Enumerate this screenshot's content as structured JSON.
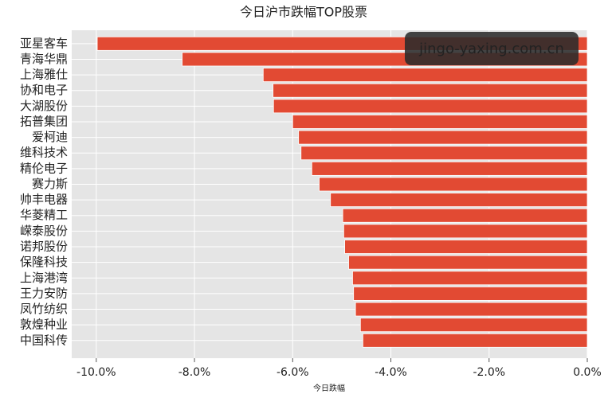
{
  "chart_data": {
    "type": "barh",
    "title": "今日沪市跌幅TOP股票",
    "x_label": "今日跌幅",
    "watermark": "jingo-yaxing.com.cn",
    "categories": [
      "亚星客车",
      "青海华鼎",
      "上海雅仕",
      "协和电子",
      "大湖股份",
      "拓普集团",
      "爱柯迪",
      "维科技术",
      "精伦电子",
      "赛力斯",
      "帅丰电器",
      "华菱精工",
      "嵘泰股份",
      "诺邦股份",
      "保隆科技",
      "上海港湾",
      "王力安防",
      "凤竹纺织",
      "敦煌种业",
      "中国科传"
    ],
    "values": [
      -9.98,
      -8.25,
      -6.6,
      -6.4,
      -6.39,
      -6.0,
      -5.88,
      -5.83,
      -5.61,
      -5.46,
      -5.23,
      -4.98,
      -4.96,
      -4.94,
      -4.86,
      -4.78,
      -4.76,
      -4.72,
      -4.62,
      -4.57
    ],
    "color": "#e24a33",
    "xlim": [
      -10.5,
      0
    ],
    "xticks": [
      {
        "value": -10,
        "label": "-10.0%"
      },
      {
        "value": -8,
        "label": "-8.0%"
      },
      {
        "value": -6,
        "label": "-6.0%"
      },
      {
        "value": -4,
        "label": "-4.0%"
      },
      {
        "value": -2,
        "label": "-2.0%"
      },
      {
        "value": 0,
        "label": "0.0%"
      }
    ],
    "grid": true
  }
}
